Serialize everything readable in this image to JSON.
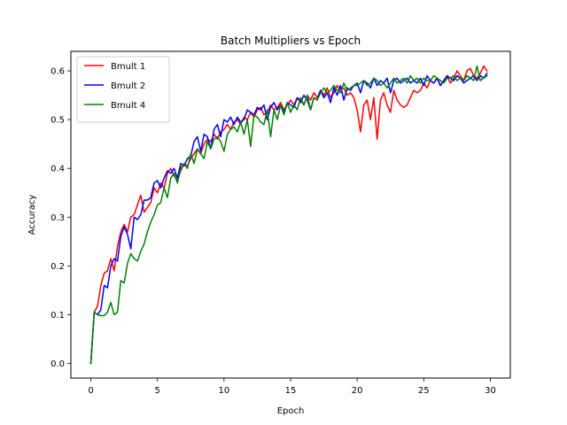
{
  "chart_data": {
    "type": "line",
    "title": "Batch Multipliers vs Epoch",
    "xlabel": "Epoch",
    "ylabel": "Accuracy",
    "xlim": [
      -1.5,
      31.5
    ],
    "ylim": [
      -0.03,
      0.64
    ],
    "xticks": [
      0,
      5,
      10,
      15,
      20,
      25,
      30
    ],
    "yticks": [
      0.0,
      0.1,
      0.2,
      0.3,
      0.4,
      0.5,
      0.6
    ],
    "ytick_labels": [
      "0.0",
      "0.1",
      "0.2",
      "0.3",
      "0.4",
      "0.5",
      "0.6"
    ],
    "xtick_labels": [
      "0",
      "5",
      "10",
      "15",
      "20",
      "25",
      "30"
    ],
    "grid": false,
    "legend_position": "top-left",
    "series": [
      {
        "name": "Bmult 1",
        "color": "#ff0000",
        "x": [
          0,
          0.25,
          0.5,
          0.75,
          1,
          1.25,
          1.5,
          1.75,
          2,
          2.25,
          2.5,
          2.75,
          3,
          3.25,
          3.5,
          3.75,
          4,
          4.25,
          4.5,
          4.75,
          5,
          5.25,
          5.5,
          5.75,
          6,
          6.25,
          6.5,
          6.75,
          7,
          7.25,
          7.5,
          7.75,
          8,
          8.25,
          8.5,
          8.75,
          9,
          9.25,
          9.5,
          9.75,
          10,
          10.25,
          10.5,
          10.75,
          11,
          11.25,
          11.5,
          11.75,
          12,
          12.25,
          12.5,
          12.75,
          13,
          13.25,
          13.5,
          13.75,
          14,
          14.25,
          14.5,
          14.75,
          15,
          15.25,
          15.5,
          15.75,
          16,
          16.25,
          16.5,
          16.75,
          17,
          17.25,
          17.5,
          17.75,
          18,
          18.25,
          18.5,
          18.75,
          19,
          19.25,
          19.5,
          19.75,
          20,
          20.25,
          20.5,
          20.75,
          21,
          21.25,
          21.5,
          21.75,
          22,
          22.25,
          22.5,
          22.75,
          23,
          23.25,
          23.5,
          23.75,
          24,
          24.25,
          24.5,
          24.75,
          25,
          25.25,
          25.5,
          25.75,
          26,
          26.25,
          26.5,
          26.75,
          27,
          27.25,
          27.5,
          27.75,
          28,
          28.25,
          28.5,
          28.75,
          29,
          29.25,
          29.5,
          29.75
        ],
        "values": [
          0.0,
          0.105,
          0.117,
          0.16,
          0.185,
          0.19,
          0.215,
          0.19,
          0.24,
          0.27,
          0.285,
          0.27,
          0.3,
          0.305,
          0.325,
          0.345,
          0.31,
          0.32,
          0.33,
          0.36,
          0.35,
          0.37,
          0.36,
          0.39,
          0.4,
          0.385,
          0.375,
          0.395,
          0.41,
          0.405,
          0.42,
          0.43,
          0.44,
          0.43,
          0.45,
          0.46,
          0.455,
          0.47,
          0.46,
          0.475,
          0.48,
          0.49,
          0.48,
          0.495,
          0.5,
          0.49,
          0.505,
          0.5,
          0.515,
          0.505,
          0.52,
          0.525,
          0.51,
          0.515,
          0.53,
          0.52,
          0.525,
          0.535,
          0.52,
          0.53,
          0.54,
          0.53,
          0.545,
          0.54,
          0.53,
          0.55,
          0.54,
          0.555,
          0.545,
          0.56,
          0.55,
          0.565,
          0.545,
          0.555,
          0.57,
          0.56,
          0.565,
          0.55,
          0.555,
          0.545,
          0.52,
          0.475,
          0.53,
          0.54,
          0.5,
          0.545,
          0.46,
          0.54,
          0.555,
          0.53,
          0.515,
          0.56,
          0.54,
          0.53,
          0.525,
          0.53,
          0.545,
          0.56,
          0.555,
          0.56,
          0.575,
          0.565,
          0.58,
          0.575,
          0.585,
          0.57,
          0.58,
          0.59,
          0.575,
          0.585,
          0.6,
          0.59,
          0.58,
          0.6,
          0.605,
          0.59,
          0.585,
          0.595,
          0.61,
          0.6
        ]
      },
      {
        "name": "Bmult 2",
        "color": "#0000ff",
        "x": [
          0,
          0.25,
          0.5,
          0.75,
          1,
          1.25,
          1.5,
          1.75,
          2,
          2.25,
          2.5,
          2.75,
          3,
          3.25,
          3.5,
          3.75,
          4,
          4.25,
          4.5,
          4.75,
          5,
          5.25,
          5.5,
          5.75,
          6,
          6.25,
          6.5,
          6.75,
          7,
          7.25,
          7.5,
          7.75,
          8,
          8.25,
          8.5,
          8.75,
          9,
          9.25,
          9.5,
          9.75,
          10,
          10.25,
          10.5,
          10.75,
          11,
          11.25,
          11.5,
          11.75,
          12,
          12.25,
          12.5,
          12.75,
          13,
          13.25,
          13.5,
          13.75,
          14,
          14.25,
          14.5,
          14.75,
          15,
          15.25,
          15.5,
          15.75,
          16,
          16.25,
          16.5,
          16.75,
          17,
          17.25,
          17.5,
          17.75,
          18,
          18.25,
          18.5,
          18.75,
          19,
          19.25,
          19.5,
          19.75,
          20,
          20.25,
          20.5,
          20.75,
          21,
          21.25,
          21.5,
          21.75,
          22,
          22.25,
          22.5,
          22.75,
          23,
          23.25,
          23.5,
          23.75,
          24,
          24.25,
          24.5,
          24.75,
          25,
          25.25,
          25.5,
          25.75,
          26,
          26.25,
          26.5,
          26.75,
          27,
          27.25,
          27.5,
          27.75,
          28,
          28.25,
          28.5,
          28.75,
          29,
          29.25,
          29.5,
          29.75
        ],
        "values": [
          0.0,
          0.105,
          0.1,
          0.11,
          0.16,
          0.155,
          0.2,
          0.215,
          0.21,
          0.26,
          0.28,
          0.265,
          0.235,
          0.3,
          0.295,
          0.305,
          0.335,
          0.335,
          0.34,
          0.37,
          0.375,
          0.36,
          0.38,
          0.395,
          0.39,
          0.4,
          0.38,
          0.41,
          0.405,
          0.42,
          0.425,
          0.455,
          0.465,
          0.435,
          0.47,
          0.465,
          0.44,
          0.48,
          0.49,
          0.465,
          0.5,
          0.495,
          0.505,
          0.49,
          0.505,
          0.495,
          0.5,
          0.52,
          0.515,
          0.51,
          0.525,
          0.52,
          0.53,
          0.5,
          0.525,
          0.535,
          0.52,
          0.53,
          0.515,
          0.535,
          0.53,
          0.525,
          0.545,
          0.535,
          0.55,
          0.54,
          0.52,
          0.545,
          0.54,
          0.56,
          0.545,
          0.555,
          0.535,
          0.565,
          0.55,
          0.57,
          0.54,
          0.565,
          0.56,
          0.57,
          0.575,
          0.555,
          0.58,
          0.575,
          0.565,
          0.585,
          0.57,
          0.58,
          0.575,
          0.585,
          0.555,
          0.58,
          0.585,
          0.575,
          0.58,
          0.585,
          0.575,
          0.58,
          0.575,
          0.585,
          0.57,
          0.59,
          0.58,
          0.575,
          0.585,
          0.57,
          0.58,
          0.59,
          0.585,
          0.58,
          0.59,
          0.585,
          0.575,
          0.58,
          0.585,
          0.59,
          0.58,
          0.59,
          0.585,
          0.595
        ]
      },
      {
        "name": "Bmult 4",
        "color": "#008000",
        "x": [
          0,
          0.25,
          0.5,
          0.75,
          1,
          1.25,
          1.5,
          1.75,
          2,
          2.25,
          2.5,
          2.75,
          3,
          3.25,
          3.5,
          3.75,
          4,
          4.25,
          4.5,
          4.75,
          5,
          5.25,
          5.5,
          5.75,
          6,
          6.25,
          6.5,
          6.75,
          7,
          7.25,
          7.5,
          7.75,
          8,
          8.25,
          8.5,
          8.75,
          9,
          9.25,
          9.5,
          9.75,
          10,
          10.25,
          10.5,
          10.75,
          11,
          11.25,
          11.5,
          11.75,
          12,
          12.25,
          12.5,
          12.75,
          13,
          13.25,
          13.5,
          13.75,
          14,
          14.25,
          14.5,
          14.75,
          15,
          15.25,
          15.5,
          15.75,
          16,
          16.25,
          16.5,
          16.75,
          17,
          17.25,
          17.5,
          17.75,
          18,
          18.25,
          18.5,
          18.75,
          19,
          19.25,
          19.5,
          19.75,
          20,
          20.25,
          20.5,
          20.75,
          21,
          21.25,
          21.5,
          21.75,
          22,
          22.25,
          22.5,
          22.75,
          23,
          23.25,
          23.5,
          23.75,
          24,
          24.25,
          24.5,
          24.75,
          25,
          25.25,
          25.5,
          25.75,
          26,
          26.25,
          26.5,
          26.75,
          27,
          27.25,
          27.5,
          27.75,
          28,
          28.25,
          28.5,
          28.75,
          29,
          29.25,
          29.5,
          29.75
        ],
        "values": [
          0.0,
          0.105,
          0.1,
          0.098,
          0.098,
          0.105,
          0.125,
          0.1,
          0.105,
          0.17,
          0.165,
          0.205,
          0.225,
          0.215,
          0.21,
          0.23,
          0.245,
          0.27,
          0.29,
          0.305,
          0.325,
          0.33,
          0.36,
          0.34,
          0.38,
          0.39,
          0.37,
          0.4,
          0.41,
          0.4,
          0.43,
          0.41,
          0.44,
          0.43,
          0.42,
          0.455,
          0.44,
          0.46,
          0.465,
          0.455,
          0.435,
          0.47,
          0.48,
          0.485,
          0.475,
          0.495,
          0.47,
          0.5,
          0.445,
          0.51,
          0.505,
          0.495,
          0.49,
          0.52,
          0.465,
          0.52,
          0.5,
          0.53,
          0.51,
          0.535,
          0.515,
          0.53,
          0.52,
          0.545,
          0.53,
          0.55,
          0.52,
          0.545,
          0.54,
          0.555,
          0.565,
          0.555,
          0.56,
          0.57,
          0.56,
          0.555,
          0.575,
          0.56,
          0.565,
          0.57,
          0.57,
          0.575,
          0.58,
          0.57,
          0.575,
          0.585,
          0.58,
          0.57,
          0.575,
          0.565,
          0.575,
          0.585,
          0.575,
          0.58,
          0.585,
          0.575,
          0.59,
          0.58,
          0.585,
          0.575,
          0.585,
          0.58,
          0.58,
          0.59,
          0.585,
          0.58,
          0.575,
          0.585,
          0.585,
          0.59,
          0.58,
          0.585,
          0.58,
          0.59,
          0.585,
          0.58,
          0.61,
          0.58,
          0.585,
          0.59
        ]
      }
    ]
  }
}
